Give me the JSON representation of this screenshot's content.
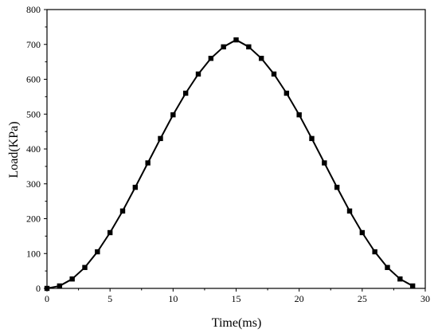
{
  "chart_data": {
    "type": "line",
    "xlabel": "Time(ms)",
    "ylabel": "Load(KPa)",
    "xlim": [
      0,
      30
    ],
    "ylim": [
      0,
      800
    ],
    "x_ticks": [
      "0",
      "5",
      "10",
      "15",
      "20",
      "25",
      "30"
    ],
    "y_ticks": [
      "0",
      "100",
      "200",
      "300",
      "400",
      "500",
      "600",
      "700",
      "800"
    ],
    "grid": false,
    "marker": "square",
    "line_color": "#000000",
    "series": [
      {
        "x": [
          0,
          1,
          2,
          3,
          4,
          5,
          6,
          7,
          8,
          9,
          10,
          11,
          12,
          13,
          14,
          15,
          16,
          17,
          18,
          19,
          20,
          21,
          22,
          23,
          24,
          25,
          26,
          27,
          28,
          29
        ],
        "values": [
          0,
          7,
          27,
          60,
          105,
          160,
          222,
          290,
          360,
          430,
          498,
          560,
          615,
          660,
          693,
          713,
          693,
          660,
          615,
          560,
          498,
          430,
          360,
          290,
          222,
          160,
          105,
          60,
          27,
          7
        ]
      }
    ]
  }
}
